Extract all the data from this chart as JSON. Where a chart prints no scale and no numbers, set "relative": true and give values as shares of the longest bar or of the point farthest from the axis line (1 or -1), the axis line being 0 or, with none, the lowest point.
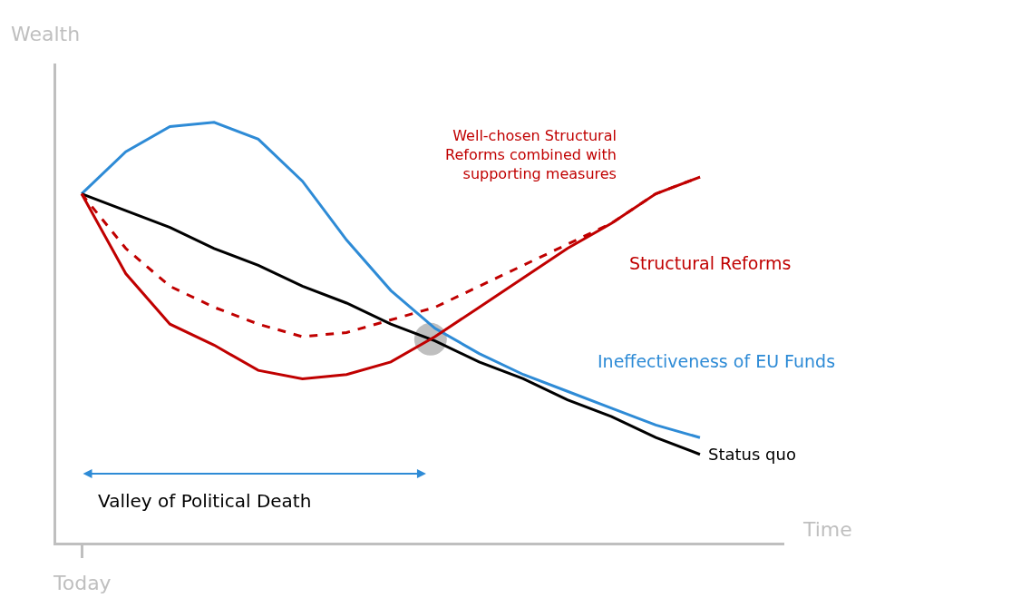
{
  "chart_data": {
    "type": "line",
    "relative": true,
    "xlabel": "Time",
    "ylabel": "Wealth",
    "categories": [
      null,
      null,
      null,
      null,
      null,
      null,
      null,
      null,
      null,
      null,
      null,
      null,
      null,
      null,
      null
    ],
    "series": [
      {
        "name": "Ineffectiveness of EU Funds",
        "color": "#2e8bd6",
        "values": [
          0.83,
          0.93,
          0.99,
          1.0,
          0.96,
          0.86,
          0.72,
          0.6,
          0.51,
          0.45,
          0.4,
          0.36,
          0.32,
          0.28,
          0.25
        ]
      },
      {
        "name": "Status quo",
        "color": "#000000",
        "values": [
          0.83,
          0.79,
          0.75,
          0.7,
          0.66,
          0.61,
          0.57,
          0.52,
          0.48,
          0.43,
          0.39,
          0.34,
          0.3,
          0.25,
          0.21
        ]
      },
      {
        "name": "Structural Reforms",
        "color": "#c00000",
        "values": [
          0.83,
          0.64,
          0.52,
          0.47,
          0.41,
          0.39,
          0.4,
          0.43,
          0.49,
          0.56,
          0.63,
          0.7,
          0.76,
          0.83,
          0.87
        ]
      },
      {
        "name": "Well-chosen Structural Reforms combined with supporting measures",
        "color": "#c00000",
        "line_style": "dashed",
        "values": [
          0.83,
          0.7,
          0.61,
          0.56,
          0.52,
          0.49,
          0.5,
          0.53,
          0.56,
          0.61,
          0.66,
          0.71,
          0.76,
          0.83,
          0.87
        ]
      }
    ],
    "annotations": [
      "Valley of Political Death",
      "Today"
    ],
    "legend": false
  }
}
